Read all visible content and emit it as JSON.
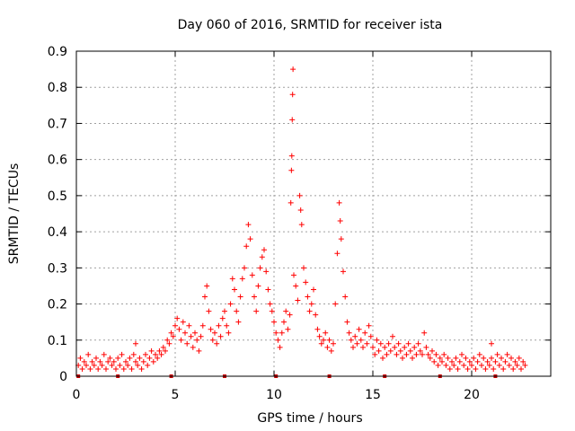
{
  "chart_data": {
    "type": "scatter",
    "title": "Day 060 of 2016, SRMTID for receiver ista",
    "xlabel": "GPS time / hours",
    "ylabel": "SRMTID / TECUs",
    "xlim": [
      0,
      24
    ],
    "ylim": [
      0,
      0.9
    ],
    "x_ticks": [
      0,
      5,
      10,
      15,
      20
    ],
    "y_ticks": [
      0,
      0.1,
      0.2,
      0.3,
      0.4,
      0.5,
      0.6,
      0.7,
      0.8,
      0.9
    ],
    "x_tick_labels": [
      "0",
      "5",
      "10",
      "15",
      "20"
    ],
    "y_tick_labels": [
      "0",
      "0.1",
      "0.2",
      "0.3",
      "0.4",
      "0.5",
      "0.6",
      "0.7",
      "0.8",
      "0.9"
    ],
    "grid": true,
    "marker": "+",
    "series_color": "#ff0000",
    "gap_marker_color": "#cc0000",
    "series": [
      {
        "name": "SRMTID",
        "points": [
          [
            0.1,
            0.03
          ],
          [
            0.2,
            0.05
          ],
          [
            0.3,
            0.02
          ],
          [
            0.4,
            0.04
          ],
          [
            0.5,
            0.03
          ],
          [
            0.6,
            0.06
          ],
          [
            0.7,
            0.02
          ],
          [
            0.8,
            0.04
          ],
          [
            0.9,
            0.03
          ],
          [
            1.0,
            0.05
          ],
          [
            1.1,
            0.02
          ],
          [
            1.2,
            0.04
          ],
          [
            1.3,
            0.03
          ],
          [
            1.4,
            0.06
          ],
          [
            1.5,
            0.02
          ],
          [
            1.6,
            0.04
          ],
          [
            1.7,
            0.05
          ],
          [
            1.8,
            0.03
          ],
          [
            1.9,
            0.04
          ],
          [
            2.0,
            0.02
          ],
          [
            2.1,
            0.05
          ],
          [
            2.2,
            0.03
          ],
          [
            2.3,
            0.06
          ],
          [
            2.4,
            0.02
          ],
          [
            2.5,
            0.04
          ],
          [
            2.6,
            0.03
          ],
          [
            2.7,
            0.05
          ],
          [
            2.8,
            0.02
          ],
          [
            2.9,
            0.06
          ],
          [
            3.0,
            0.04
          ],
          [
            3.0,
            0.09
          ],
          [
            3.1,
            0.03
          ],
          [
            3.2,
            0.05
          ],
          [
            3.3,
            0.02
          ],
          [
            3.4,
            0.04
          ],
          [
            3.5,
            0.06
          ],
          [
            3.6,
            0.03
          ],
          [
            3.7,
            0.05
          ],
          [
            3.8,
            0.07
          ],
          [
            3.9,
            0.04
          ],
          [
            4.0,
            0.06
          ],
          [
            4.1,
            0.05
          ],
          [
            4.2,
            0.07
          ],
          [
            4.3,
            0.06
          ],
          [
            4.4,
            0.08
          ],
          [
            4.5,
            0.07
          ],
          [
            4.6,
            0.1
          ],
          [
            4.7,
            0.09
          ],
          [
            4.8,
            0.12
          ],
          [
            4.9,
            0.11
          ],
          [
            5.0,
            0.14
          ],
          [
            5.1,
            0.16
          ],
          [
            5.2,
            0.13
          ],
          [
            5.3,
            0.1
          ],
          [
            5.4,
            0.15
          ],
          [
            5.5,
            0.12
          ],
          [
            5.6,
            0.09
          ],
          [
            5.7,
            0.14
          ],
          [
            5.8,
            0.11
          ],
          [
            5.9,
            0.08
          ],
          [
            6.0,
            0.12
          ],
          [
            6.1,
            0.1
          ],
          [
            6.2,
            0.07
          ],
          [
            6.3,
            0.11
          ],
          [
            6.4,
            0.14
          ],
          [
            6.5,
            0.22
          ],
          [
            6.6,
            0.25
          ],
          [
            6.7,
            0.18
          ],
          [
            6.8,
            0.13
          ],
          [
            6.9,
            0.1
          ],
          [
            7.0,
            0.12
          ],
          [
            7.1,
            0.09
          ],
          [
            7.2,
            0.14
          ],
          [
            7.3,
            0.11
          ],
          [
            7.4,
            0.16
          ],
          [
            7.5,
            0.18
          ],
          [
            7.6,
            0.14
          ],
          [
            7.7,
            0.12
          ],
          [
            7.8,
            0.2
          ],
          [
            7.9,
            0.27
          ],
          [
            8.0,
            0.24
          ],
          [
            8.1,
            0.18
          ],
          [
            8.2,
            0.15
          ],
          [
            8.3,
            0.22
          ],
          [
            8.4,
            0.27
          ],
          [
            8.5,
            0.3
          ],
          [
            8.6,
            0.36
          ],
          [
            8.7,
            0.42
          ],
          [
            8.8,
            0.38
          ],
          [
            8.9,
            0.28
          ],
          [
            9.0,
            0.22
          ],
          [
            9.1,
            0.18
          ],
          [
            9.2,
            0.25
          ],
          [
            9.3,
            0.3
          ],
          [
            9.4,
            0.33
          ],
          [
            9.5,
            0.35
          ],
          [
            9.6,
            0.29
          ],
          [
            9.7,
            0.24
          ],
          [
            9.8,
            0.2
          ],
          [
            9.9,
            0.18
          ],
          [
            10.0,
            0.15
          ],
          [
            10.1,
            0.12
          ],
          [
            10.2,
            0.1
          ],
          [
            10.3,
            0.08
          ],
          [
            10.4,
            0.12
          ],
          [
            10.5,
            0.15
          ],
          [
            10.6,
            0.18
          ],
          [
            10.7,
            0.13
          ],
          [
            10.8,
            0.17
          ],
          [
            10.85,
            0.48
          ],
          [
            10.88,
            0.57
          ],
          [
            10.9,
            0.61
          ],
          [
            10.92,
            0.71
          ],
          [
            10.94,
            0.78
          ],
          [
            10.96,
            0.85
          ],
          [
            11.0,
            0.28
          ],
          [
            11.1,
            0.25
          ],
          [
            11.2,
            0.21
          ],
          [
            11.3,
            0.5
          ],
          [
            11.35,
            0.46
          ],
          [
            11.4,
            0.42
          ],
          [
            11.5,
            0.3
          ],
          [
            11.6,
            0.26
          ],
          [
            11.7,
            0.22
          ],
          [
            11.8,
            0.18
          ],
          [
            11.9,
            0.2
          ],
          [
            12.0,
            0.24
          ],
          [
            12.1,
            0.17
          ],
          [
            12.2,
            0.13
          ],
          [
            12.3,
            0.11
          ],
          [
            12.4,
            0.09
          ],
          [
            12.5,
            0.1
          ],
          [
            12.6,
            0.12
          ],
          [
            12.7,
            0.08
          ],
          [
            12.8,
            0.1
          ],
          [
            12.9,
            0.07
          ],
          [
            13.0,
            0.09
          ],
          [
            13.1,
            0.2
          ],
          [
            13.2,
            0.34
          ],
          [
            13.3,
            0.48
          ],
          [
            13.35,
            0.43
          ],
          [
            13.4,
            0.38
          ],
          [
            13.5,
            0.29
          ],
          [
            13.6,
            0.22
          ],
          [
            13.7,
            0.15
          ],
          [
            13.8,
            0.12
          ],
          [
            13.9,
            0.1
          ],
          [
            14.0,
            0.08
          ],
          [
            14.1,
            0.11
          ],
          [
            14.2,
            0.09
          ],
          [
            14.3,
            0.13
          ],
          [
            14.4,
            0.1
          ],
          [
            14.5,
            0.08
          ],
          [
            14.6,
            0.12
          ],
          [
            14.7,
            0.09
          ],
          [
            14.8,
            0.14
          ],
          [
            14.9,
            0.11
          ],
          [
            15.0,
            0.08
          ],
          [
            15.1,
            0.06
          ],
          [
            15.2,
            0.1
          ],
          [
            15.3,
            0.07
          ],
          [
            15.4,
            0.09
          ],
          [
            15.5,
            0.05
          ],
          [
            15.6,
            0.08
          ],
          [
            15.7,
            0.06
          ],
          [
            15.8,
            0.09
          ],
          [
            15.9,
            0.07
          ],
          [
            16.0,
            0.11
          ],
          [
            16.1,
            0.08
          ],
          [
            16.2,
            0.06
          ],
          [
            16.3,
            0.09
          ],
          [
            16.4,
            0.07
          ],
          [
            16.5,
            0.05
          ],
          [
            16.6,
            0.08
          ],
          [
            16.7,
            0.06
          ],
          [
            16.8,
            0.09
          ],
          [
            16.9,
            0.07
          ],
          [
            17.0,
            0.05
          ],
          [
            17.1,
            0.08
          ],
          [
            17.2,
            0.06
          ],
          [
            17.3,
            0.09
          ],
          [
            17.4,
            0.07
          ],
          [
            17.5,
            0.06
          ],
          [
            17.6,
            0.12
          ],
          [
            17.7,
            0.08
          ],
          [
            17.8,
            0.06
          ],
          [
            17.9,
            0.05
          ],
          [
            18.0,
            0.07
          ],
          [
            18.1,
            0.04
          ],
          [
            18.2,
            0.06
          ],
          [
            18.3,
            0.03
          ],
          [
            18.4,
            0.05
          ],
          [
            18.5,
            0.04
          ],
          [
            18.6,
            0.06
          ],
          [
            18.7,
            0.03
          ],
          [
            18.8,
            0.05
          ],
          [
            18.9,
            0.02
          ],
          [
            19.0,
            0.04
          ],
          [
            19.1,
            0.03
          ],
          [
            19.2,
            0.05
          ],
          [
            19.3,
            0.02
          ],
          [
            19.4,
            0.04
          ],
          [
            19.5,
            0.06
          ],
          [
            19.6,
            0.03
          ],
          [
            19.7,
            0.05
          ],
          [
            19.8,
            0.02
          ],
          [
            19.9,
            0.04
          ],
          [
            20.0,
            0.03
          ],
          [
            20.1,
            0.05
          ],
          [
            20.2,
            0.02
          ],
          [
            20.3,
            0.04
          ],
          [
            20.4,
            0.06
          ],
          [
            20.5,
            0.03
          ],
          [
            20.6,
            0.05
          ],
          [
            20.7,
            0.02
          ],
          [
            20.8,
            0.04
          ],
          [
            20.9,
            0.03
          ],
          [
            21.0,
            0.05
          ],
          [
            21.0,
            0.09
          ],
          [
            21.1,
            0.02
          ],
          [
            21.2,
            0.04
          ],
          [
            21.3,
            0.06
          ],
          [
            21.4,
            0.03
          ],
          [
            21.5,
            0.05
          ],
          [
            21.6,
            0.02
          ],
          [
            21.7,
            0.04
          ],
          [
            21.8,
            0.06
          ],
          [
            21.9,
            0.03
          ],
          [
            22.0,
            0.05
          ],
          [
            22.1,
            0.02
          ],
          [
            22.2,
            0.04
          ],
          [
            22.3,
            0.03
          ],
          [
            22.4,
            0.05
          ],
          [
            22.5,
            0.02
          ],
          [
            22.6,
            0.04
          ],
          [
            22.7,
            0.03
          ]
        ]
      }
    ],
    "gap_markers_x": [
      0.1,
      2.1,
      4.8,
      7.5,
      10.1,
      12.8,
      15.6,
      18.4,
      21.2
    ]
  }
}
